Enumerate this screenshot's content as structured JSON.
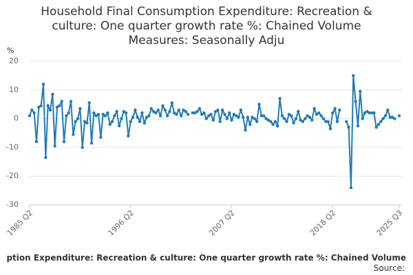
{
  "chart_data": {
    "type": "line",
    "title": [
      "Household Final Consumption Expenditure: Recreation &",
      "culture: One quarter growth rate %: Chained Volume",
      "Measures: Seasonally Adju"
    ],
    "y_label": "%",
    "footer_title": "ption Expenditure: Recreation & culture: One quarter growth rate %: Chained Volume",
    "source": "Source:",
    "categories": [
      "1985 Q2",
      null,
      null,
      null,
      null,
      null,
      null,
      null,
      null,
      null,
      null,
      null,
      null,
      null,
      null,
      null,
      null,
      null,
      null,
      null,
      null,
      null,
      null,
      null,
      null,
      null,
      null,
      null,
      null,
      null,
      null,
      null,
      null,
      null,
      null,
      null,
      null,
      null,
      null,
      null,
      null,
      null,
      null,
      null,
      "1996 Q2",
      null,
      null,
      null,
      null,
      null,
      null,
      null,
      null,
      null,
      null,
      null,
      null,
      null,
      null,
      null,
      null,
      null,
      null,
      null,
      null,
      null,
      null,
      null,
      null,
      null,
      null,
      null,
      null,
      null,
      null,
      null,
      null,
      null,
      null,
      null,
      null,
      null,
      null,
      null,
      null,
      null,
      null,
      null,
      "2007 Q2",
      null,
      null,
      null,
      null,
      null,
      null,
      null,
      null,
      null,
      null,
      null,
      null,
      null,
      null,
      null,
      null,
      null,
      null,
      null,
      null,
      null,
      null,
      null,
      null,
      null,
      null,
      null,
      null,
      null,
      null,
      null,
      null,
      null,
      null,
      null,
      null,
      null,
      null,
      null,
      null,
      null,
      null,
      null,
      "2018 Q2",
      null,
      null,
      null,
      null,
      null,
      null,
      null,
      null,
      null,
      null,
      null,
      null,
      null,
      null,
      null,
      null,
      null,
      null,
      null,
      null,
      null,
      null,
      null,
      null,
      null,
      null,
      null,
      null,
      "2025 Q3"
    ],
    "series": [
      {
        "name": "Growth rate",
        "color": "#1f7ab8",
        "values": [
          1,
          3,
          2,
          -8,
          4,
          4.5,
          12,
          -13.5,
          4.5,
          3,
          8.5,
          -9.5,
          4,
          4.5,
          6,
          -8,
          1,
          2,
          6,
          -5.5,
          -1,
          0,
          3.5,
          -10,
          -1,
          -1.5,
          5.5,
          -8.5,
          2,
          1,
          1.5,
          -6.5,
          1.5,
          1,
          2,
          -2,
          -1,
          1,
          2.5,
          -2.5,
          0,
          2.5,
          2,
          -6,
          -1,
          0.5,
          3,
          0.5,
          -1,
          2,
          -1.5,
          0.5,
          1,
          3.5,
          2.5,
          2,
          3,
          1,
          4.5,
          3,
          1,
          2.5,
          5.5,
          2,
          1.5,
          3,
          1,
          3,
          2.5,
          1.5,
          null,
          2,
          2,
          2.5,
          3.5,
          1.5,
          2,
          0,
          1,
          1.5,
          -0.5,
          2.5,
          3,
          -1,
          3,
          1.5,
          0,
          2,
          -0.5,
          1.5,
          1,
          0.5,
          3,
          0.5,
          -4,
          0.5,
          -2,
          0.5,
          0,
          -1,
          5,
          1,
          1,
          0,
          -0.5,
          -1,
          -2,
          -1,
          -2.5,
          7,
          1,
          0,
          -1,
          1.5,
          1,
          -1.5,
          0,
          2.5,
          -0.5,
          -1,
          0,
          1,
          0.5,
          -0.5,
          3.5,
          1.5,
          2,
          1,
          0,
          -1,
          -1,
          -3.5,
          2,
          3.5,
          -1,
          3,
          null,
          null,
          -1,
          -3,
          -24,
          15,
          6,
          -2.5,
          9.5,
          0,
          2,
          2.5,
          2,
          2,
          2,
          -3,
          -2,
          -1,
          0,
          1,
          3,
          0.5,
          0.5,
          0,
          null,
          1
        ]
      }
    ],
    "ylim": [
      -30,
      20
    ],
    "yticks": [
      -30,
      -20,
      -10,
      0,
      10,
      20
    ],
    "grid": true
  }
}
